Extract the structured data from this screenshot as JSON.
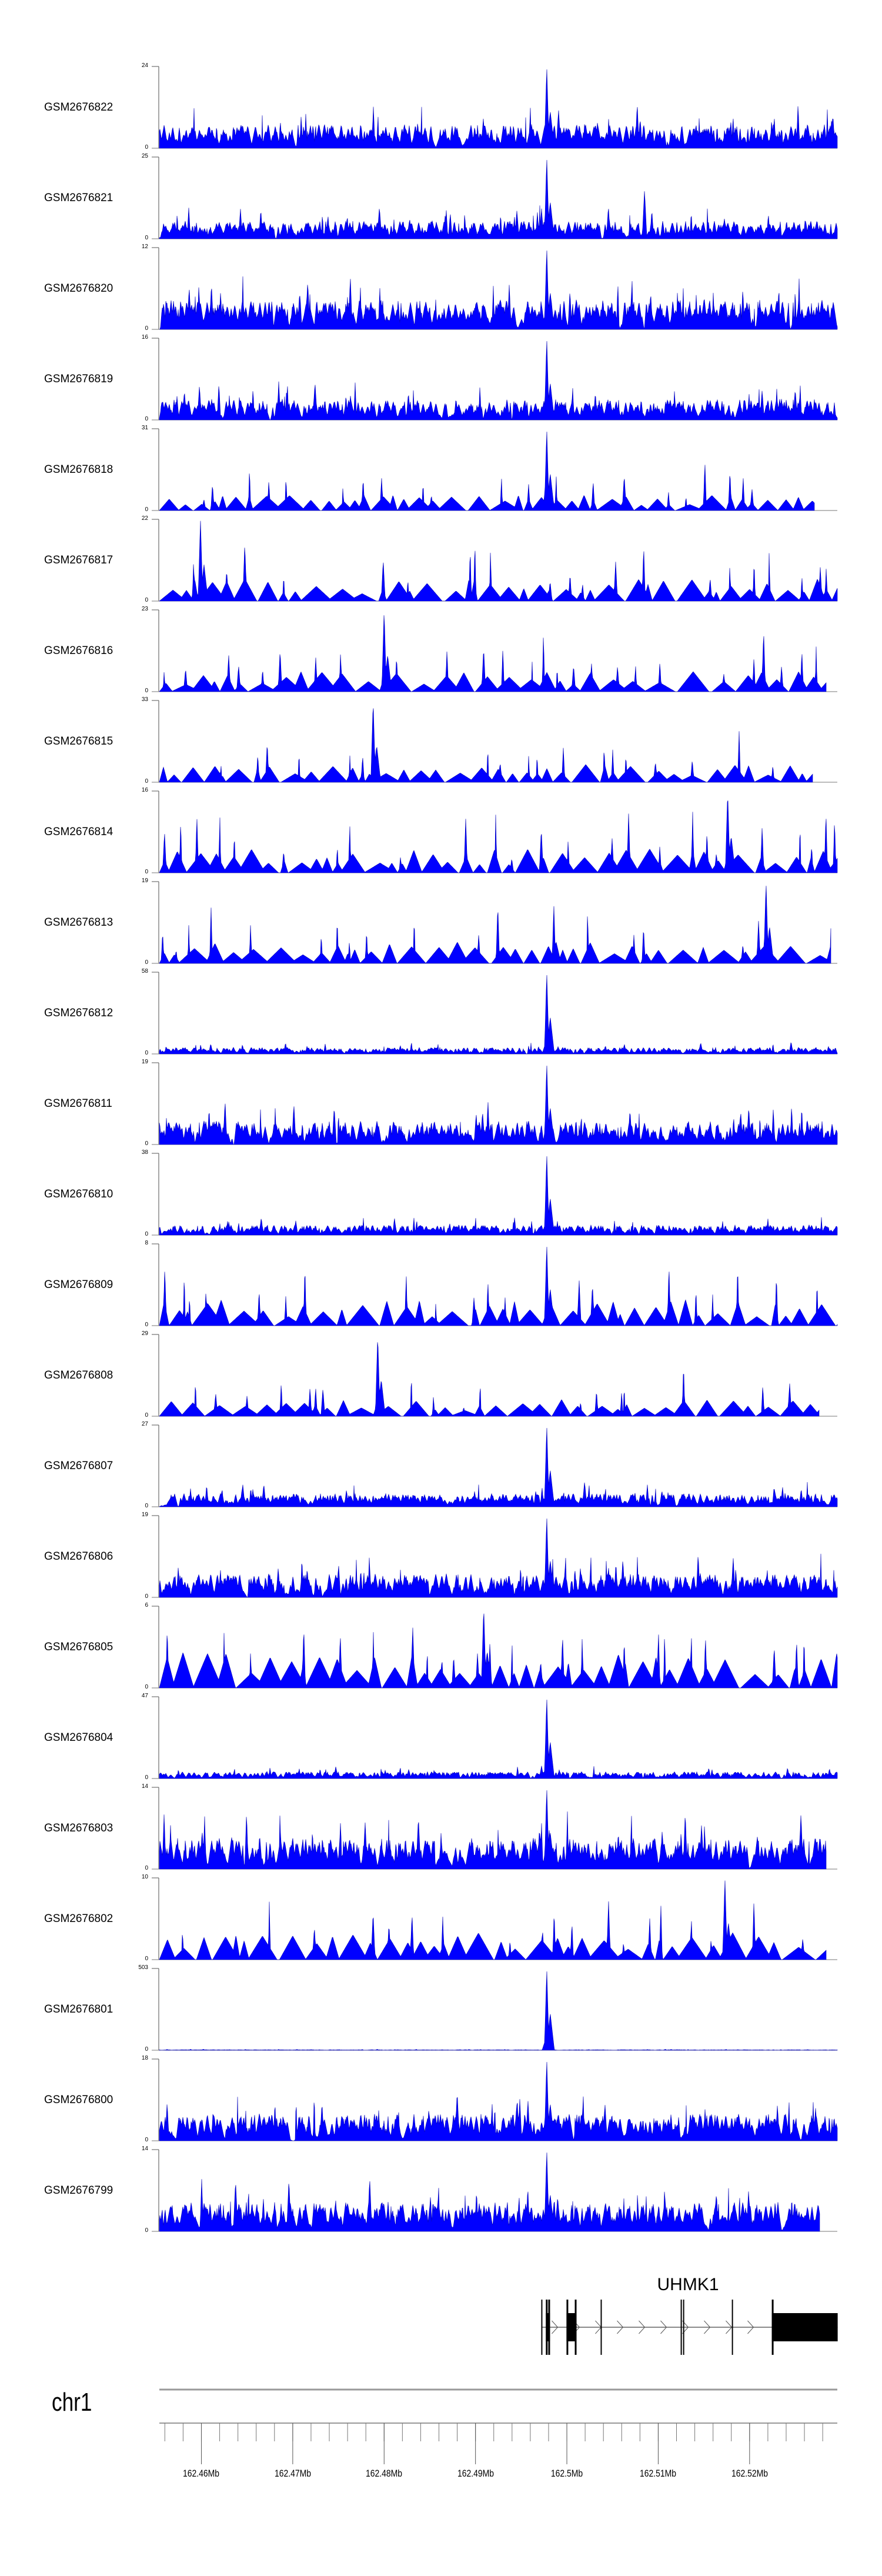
{
  "chart_data": {
    "type": "area",
    "title": "",
    "xlabel": "",
    "chromosome": "chr1",
    "xlim_mb": [
      162.4554,
      162.5296
    ],
    "x_ticks_mb": [
      162.46,
      162.47,
      162.48,
      162.49,
      162.5,
      162.51,
      162.52
    ],
    "x_tick_labels": [
      "162.46Mb",
      "162.47Mb",
      "162.48Mb",
      "162.49Mb",
      "162.5Mb",
      "162.51Mb",
      "162.52Mb"
    ],
    "minor_tick_step_mb": 0.002,
    "fill_color": "#0000ff",
    "tracks": [
      {
        "name": "GSM2676822",
        "ymax": 24,
        "ymin": 0,
        "style": "dense",
        "bg": 4.5,
        "peak_mb": 162.4978,
        "peak": 24,
        "end_mb": 162.5296
      },
      {
        "name": "GSM2676821",
        "ymax": 25,
        "ymin": 0,
        "style": "dense",
        "bg": 3.5,
        "peak_mb": 162.4978,
        "peak": 25,
        "second_mb": 162.5085,
        "second": 15,
        "end_mb": 162.5296
      },
      {
        "name": "GSM2676820",
        "ymax": 12,
        "ymin": 0,
        "style": "dense",
        "bg": 2.8,
        "peak_mb": 162.4978,
        "peak": 12,
        "end_mb": 162.5296
      },
      {
        "name": "GSM2676819",
        "ymax": 16,
        "ymin": 0,
        "style": "dense",
        "bg": 2.6,
        "peak_mb": 162.4978,
        "peak": 16,
        "end_mb": 162.5296
      },
      {
        "name": "GSM2676818",
        "ymax": 31,
        "ymin": 0,
        "style": "sparse",
        "bg": 5,
        "peak_mb": 162.4978,
        "peak": 31,
        "end_mb": 162.5271
      },
      {
        "name": "GSM2676817",
        "ymax": 22,
        "ymin": 0,
        "style": "sparse",
        "bg": 5,
        "peak_mb": 162.4599,
        "peak": 22,
        "end_mb": 162.5296
      },
      {
        "name": "GSM2676816",
        "ymax": 23,
        "ymin": 0,
        "style": "sparse",
        "bg": 5,
        "peak_mb": 162.48,
        "peak": 23,
        "end_mb": 162.5284
      },
      {
        "name": "GSM2676815",
        "ymax": 33,
        "ymin": 0,
        "style": "sparse",
        "bg": 6,
        "peak_mb": 162.4788,
        "peak": 33,
        "end_mb": 162.5269
      },
      {
        "name": "GSM2676814",
        "ymax": 16,
        "ymin": 0,
        "style": "sparse",
        "bg": 4,
        "peak_mb": 162.5176,
        "peak": 16,
        "end_mb": 162.5296
      },
      {
        "name": "GSM2676813",
        "ymax": 19,
        "ymin": 0,
        "style": "sparse",
        "bg": 4.5,
        "peak_mb": 162.5218,
        "peak": 19,
        "end_mb": 162.5289
      },
      {
        "name": "GSM2676812",
        "ymax": 58,
        "ymin": 0,
        "style": "dense",
        "bg": 3,
        "peak_mb": 162.4978,
        "peak": 58,
        "end_mb": 162.5296
      },
      {
        "name": "GSM2676811",
        "ymax": 19,
        "ymin": 0,
        "style": "dense",
        "bg": 3.5,
        "peak_mb": 162.4978,
        "peak": 19,
        "end_mb": 162.5296
      },
      {
        "name": "GSM2676810",
        "ymax": 38,
        "ymin": 0,
        "style": "dense",
        "bg": 3,
        "peak_mb": 162.4978,
        "peak": 38,
        "end_mb": 162.5296
      },
      {
        "name": "GSM2676809",
        "ymax": 8,
        "ymin": 0,
        "style": "sparse",
        "bg": 2.2,
        "peak_mb": 162.4978,
        "peak": 8,
        "end_mb": 162.5296
      },
      {
        "name": "GSM2676808",
        "ymax": 29,
        "ymin": 0,
        "style": "sparse",
        "bg": 5,
        "peak_mb": 162.4793,
        "peak": 29,
        "end_mb": 162.5276
      },
      {
        "name": "GSM2676807",
        "ymax": 27,
        "ymin": 0,
        "style": "dense",
        "bg": 2.8,
        "peak_mb": 162.4978,
        "peak": 27,
        "end_mb": 162.5296
      },
      {
        "name": "GSM2676806",
        "ymax": 19,
        "ymin": 0,
        "style": "dense",
        "bg": 3.5,
        "peak_mb": 162.4978,
        "peak": 19,
        "end_mb": 162.5296
      },
      {
        "name": "GSM2676805",
        "ymax": 6,
        "ymin": 0,
        "style": "sparse",
        "bg": 2.2,
        "peak_mb": 162.4909,
        "peak": 6,
        "end_mb": 162.5296
      },
      {
        "name": "GSM2676804",
        "ymax": 47,
        "ymin": 0,
        "style": "dense",
        "bg": 2.5,
        "peak_mb": 162.4978,
        "peak": 47,
        "end_mb": 162.5296
      },
      {
        "name": "GSM2676803",
        "ymax": 14,
        "ymin": 0,
        "style": "dense",
        "bg": 3.5,
        "peak_mb": 162.4978,
        "peak": 14,
        "end_mb": 162.5284
      },
      {
        "name": "GSM2676802",
        "ymax": 10,
        "ymin": 0,
        "style": "sparse",
        "bg": 2.8,
        "peak_mb": 162.5173,
        "peak": 10,
        "end_mb": 162.5284
      },
      {
        "name": "GSM2676801",
        "ymax": 503,
        "ymin": 0,
        "style": "dense",
        "bg": 2,
        "peak_mb": 162.4978,
        "peak": 503,
        "end_mb": 162.5296
      },
      {
        "name": "GSM2676800",
        "ymax": 18,
        "ymin": 0,
        "style": "dense",
        "bg": 3.8,
        "peak_mb": 162.4978,
        "peak": 18,
        "end_mb": 162.5296
      },
      {
        "name": "GSM2676799",
        "ymax": 14,
        "ymin": 0,
        "style": "dense",
        "bg": 3.2,
        "peak_mb": 162.4978,
        "peak": 14,
        "end_mb": 162.5277
      }
    ]
  },
  "gene": {
    "name": "UHMK1",
    "start_mb": 162.49726,
    "end_mb": 162.52964,
    "strand": "+",
    "features": [
      {
        "start_mb": 162.49726,
        "end_mb": 162.49728,
        "kind": "line"
      },
      {
        "start_mb": 162.4977,
        "end_mb": 162.49816,
        "kind": "exon"
      },
      {
        "start_mb": 162.49996,
        "end_mb": 162.50106,
        "kind": "exon"
      },
      {
        "start_mb": 162.50376,
        "end_mb": 162.50386,
        "kind": "line"
      },
      {
        "start_mb": 162.51252,
        "end_mb": 162.51258,
        "kind": "line"
      },
      {
        "start_mb": 162.51278,
        "end_mb": 162.51284,
        "kind": "line"
      },
      {
        "start_mb": 162.51812,
        "end_mb": 162.51822,
        "kind": "line"
      },
      {
        "start_mb": 162.52243,
        "end_mb": 162.52964,
        "kind": "exon"
      }
    ]
  }
}
